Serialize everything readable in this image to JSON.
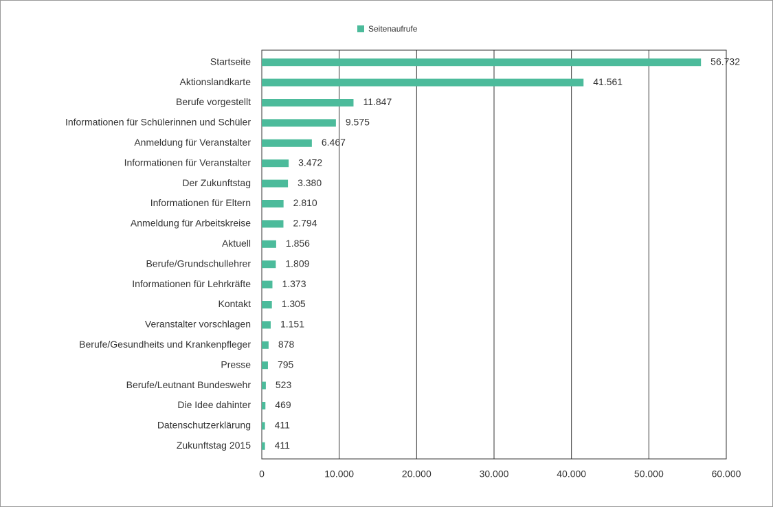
{
  "chart_data": {
    "type": "bar",
    "orientation": "horizontal",
    "legend": "top",
    "series": [
      {
        "name": "Seitenaufrufe",
        "color": "#4cbb9b",
        "values": [
          56732,
          41561,
          11847,
          9575,
          6467,
          3472,
          3380,
          2810,
          2794,
          1856,
          1809,
          1373,
          1305,
          1151,
          878,
          795,
          523,
          469,
          411,
          411
        ],
        "value_labels": [
          "56.732",
          "41.561",
          "11.847",
          "9.575",
          "6.467",
          "3.472",
          "3.380",
          "2.810",
          "2.794",
          "1.856",
          "1.809",
          "1.373",
          "1.305",
          "1.151",
          "878",
          "795",
          "523",
          "469",
          "411",
          "411"
        ]
      }
    ],
    "categories": [
      "Startseite",
      "Aktionslandkarte",
      "Berufe vorgestellt",
      "Informationen für Schülerinnen und Schüler",
      "Anmeldung für Veranstalter",
      "Informationen für Veranstalter",
      "Der Zukunftstag",
      "Informationen für Eltern",
      "Anmeldung für Arbeitskreise",
      "Aktuell",
      "Berufe/Grundschullehrer",
      "Informationen für Lehrkräfte",
      "Kontakt",
      "Veranstalter vorschlagen",
      "Berufe/Gesundheits und Krankenpfleger",
      "Presse",
      "Berufe/Leutnant Bundeswehr",
      "Die Idee dahinter",
      "Datenschutzerklärung",
      "Zukunftstag 2015"
    ],
    "xlim": [
      0,
      60000
    ],
    "xticks": [
      0,
      {
        "value": 10000,
        "label": "10.000"
      },
      {
        "value": 20000,
        "label": "20.000"
      },
      {
        "value": 30000,
        "label": "30.000"
      },
      {
        "value": 40000,
        "label": "40.000"
      },
      {
        "value": 50000,
        "label": "50.000"
      },
      {
        "value": 60000,
        "label": "60.000"
      }
    ],
    "grid": true
  }
}
